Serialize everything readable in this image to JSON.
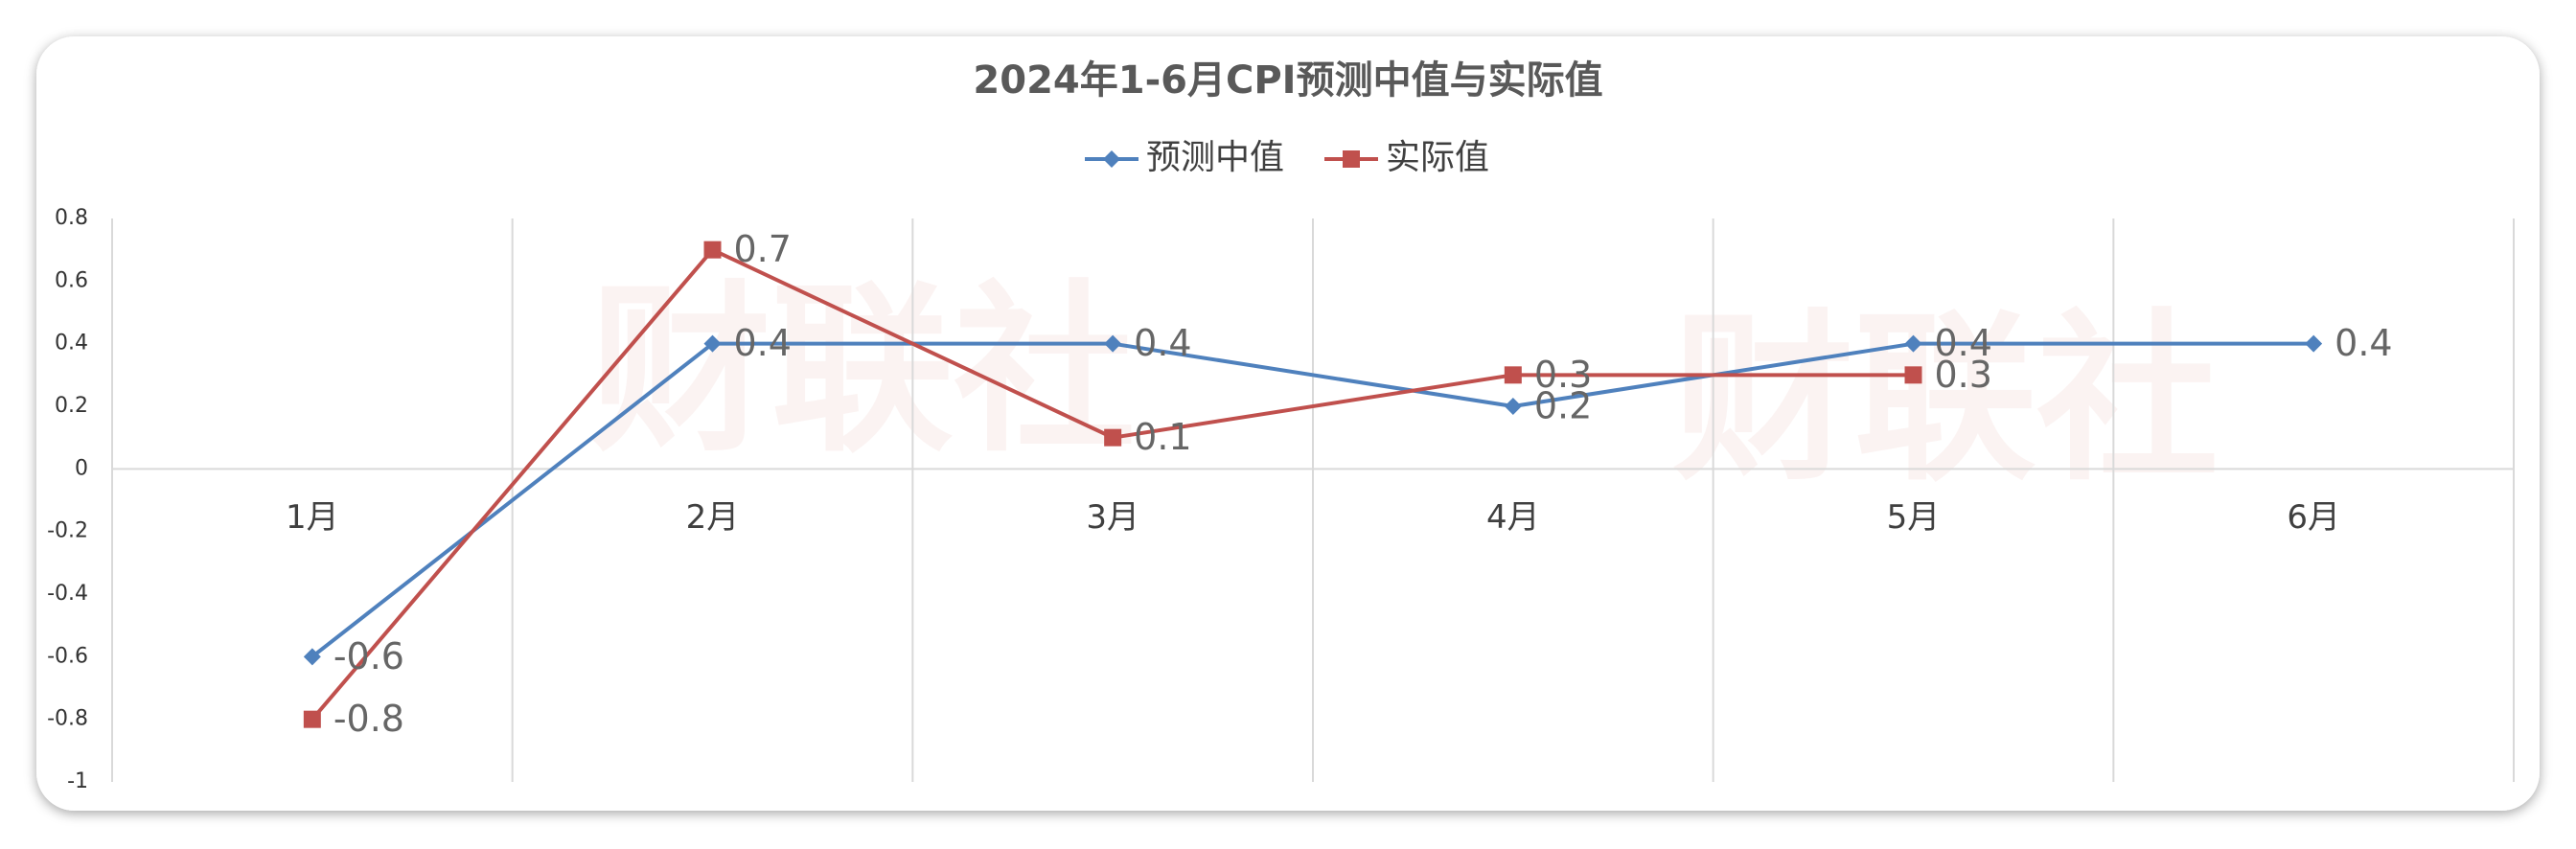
{
  "chart_data": {
    "type": "line",
    "title": "2024年1-6月CPI预测中值与实际值",
    "watermark": "财联社",
    "categories": [
      "1月",
      "2月",
      "3月",
      "4月",
      "5月",
      "6月"
    ],
    "series": [
      {
        "name": "预测中值",
        "color": "#4f81bd",
        "marker": "diamond",
        "values": [
          -0.6,
          0.4,
          0.4,
          0.2,
          0.4,
          0.4
        ]
      },
      {
        "name": "实际值",
        "color": "#c0504d",
        "marker": "square",
        "values": [
          -0.8,
          0.7,
          0.1,
          0.3,
          0.3,
          null
        ]
      }
    ],
    "ylim": [
      -1,
      0.8
    ],
    "yticks": [
      -1,
      -0.8,
      -0.6,
      -0.4,
      -0.2,
      0,
      0.2,
      0.4,
      0.6,
      0.8
    ],
    "grid": true,
    "legend": "top"
  }
}
